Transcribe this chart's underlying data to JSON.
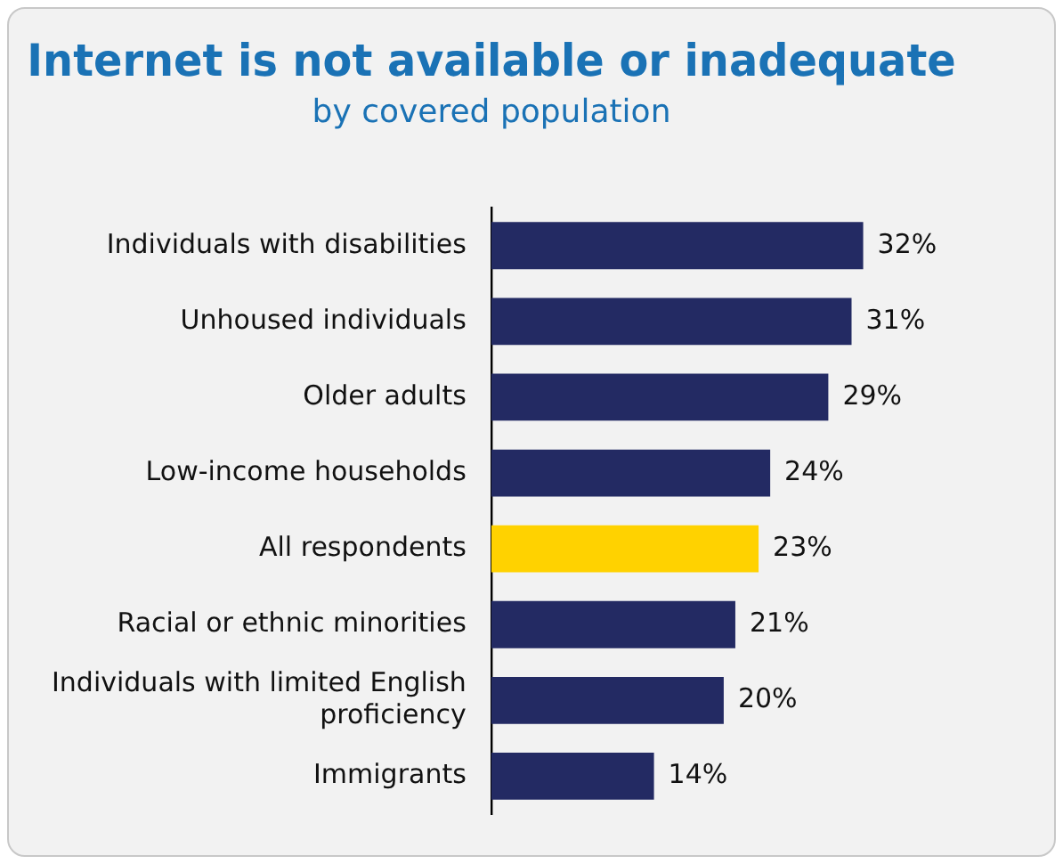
{
  "chart_data": {
    "type": "bar",
    "orientation": "horizontal",
    "title": "Internet is not available or inadequate",
    "subtitle": "by covered population",
    "categories": [
      "Individuals with disabilities",
      "Unhoused individuals",
      "Older adults",
      "Low-income households",
      "All respondents",
      "Racial or ethnic minorities",
      "Individuals with limited English proficiency",
      "Immigrants"
    ],
    "values": [
      32,
      31,
      29,
      24,
      23,
      21,
      20,
      14
    ],
    "colors": [
      "#232a63",
      "#232a63",
      "#232a63",
      "#232a63",
      "#ffd200",
      "#232a63",
      "#232a63",
      "#232a63"
    ],
    "value_labels": [
      "32%",
      "31%",
      "29%",
      "24%",
      "23%",
      "21%",
      "20%",
      "14%"
    ],
    "tick_labels": "y",
    "grid": false,
    "legend": false
  }
}
